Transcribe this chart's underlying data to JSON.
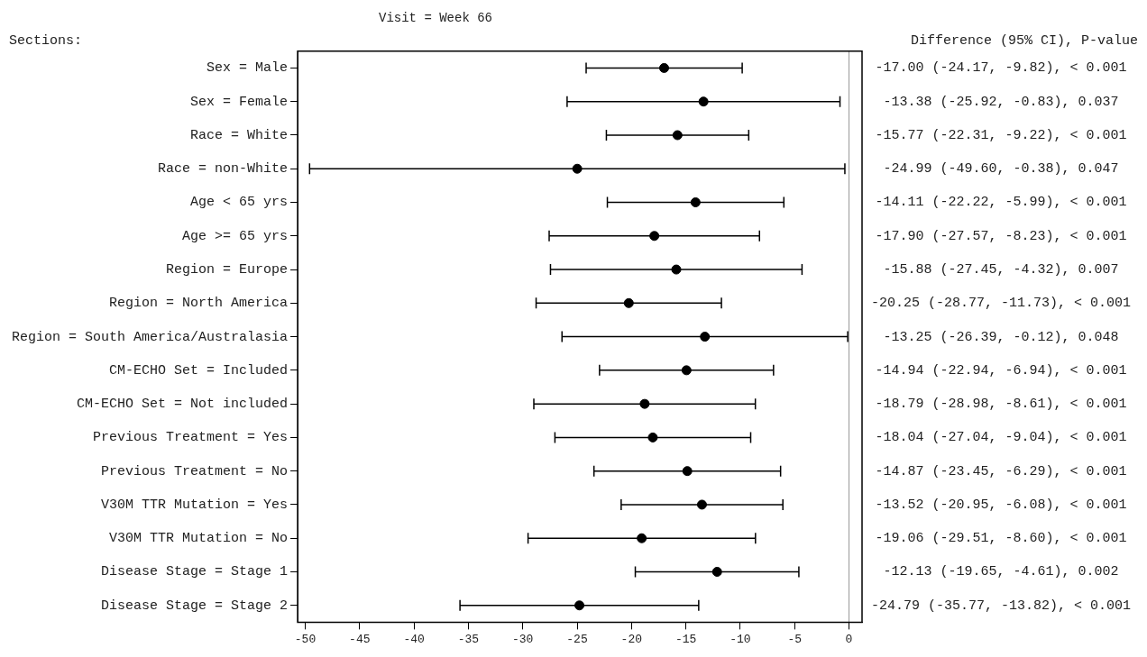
{
  "chart_data": {
    "type": "scatter",
    "orientation": "horizontal",
    "title": "Visit = Week 66",
    "marker": "circle",
    "categories": [
      "Sex = Male",
      "Sex = Female",
      "Race = White",
      "Race = non-White",
      "Age < 65 yrs",
      "Age >= 65 yrs",
      "Region = Europe",
      "Region = North America",
      "Region = South America/Australasia",
      "CM-ECHO Set = Included",
      "CM-ECHO Set = Not included",
      "Previous Treatment = Yes",
      "Previous Treatment = No",
      "V30M TTR Mutation = Yes",
      "V30M TTR Mutation = No",
      "Disease Stage = Stage 1",
      "Disease Stage = Stage 2"
    ],
    "series": [
      {
        "color": "#000000",
        "values": [
          -17.0,
          -13.38,
          -15.77,
          -24.99,
          -14.11,
          -17.9,
          -15.88,
          -20.25,
          -13.25,
          -14.94,
          -18.79,
          -18.04,
          -14.87,
          -13.52,
          -19.06,
          -12.13,
          -24.79
        ],
        "errors": [
          [
            -24.17,
            -9.82
          ],
          [
            -25.92,
            -0.83
          ],
          [
            -22.31,
            -9.22
          ],
          [
            -49.6,
            -0.38
          ],
          [
            -22.22,
            -5.99
          ],
          [
            -27.57,
            -8.23
          ],
          [
            -27.45,
            -4.32
          ],
          [
            -28.77,
            -11.73
          ],
          [
            -26.39,
            -0.12
          ],
          [
            -22.94,
            -6.94
          ],
          [
            -28.98,
            -8.61
          ],
          [
            -27.04,
            -9.04
          ],
          [
            -23.45,
            -6.29
          ],
          [
            -20.95,
            -6.08
          ],
          [
            -29.51,
            -8.6
          ],
          [
            -19.65,
            -4.61
          ],
          [
            -35.77,
            -13.82
          ]
        ]
      }
    ],
    "xlim": [
      -50.7,
      1.2
    ],
    "xticks": [
      -50,
      -45,
      -40,
      -35,
      -30,
      -25,
      -20,
      -15,
      -10,
      -5,
      0
    ],
    "ref_lines": [
      {
        "axis": "x",
        "value": 0,
        "color": "#999999"
      }
    ],
    "annotations": [
      "Sections:",
      "Difference (95% CI), P-value",
      "-17.00 (-24.17, -9.82), < 0.001",
      "-13.38 (-25.92, -0.83), 0.037",
      "-15.77 (-22.31, -9.22), < 0.001",
      "-24.99 (-49.60, -0.38), 0.047",
      "-14.11 (-22.22, -5.99), < 0.001",
      "-17.90 (-27.57, -8.23), < 0.001",
      "-15.88 (-27.45, -4.32), 0.007",
      "-20.25 (-28.77, -11.73), < 0.001",
      "-13.25 (-26.39, -0.12), 0.048",
      "-14.94 (-22.94, -6.94), < 0.001",
      "-18.79 (-28.98, -8.61), < 0.001",
      "-18.04 (-27.04, -9.04), < 0.001",
      "-14.87 (-23.45, -6.29), < 0.001",
      "-13.52 (-20.95, -6.08), < 0.001",
      "-19.06 (-29.51, -8.60), < 0.001",
      "-12.13 (-19.65, -4.61), 0.002",
      "-24.79 (-35.77, -13.82), < 0.001"
    ]
  }
}
